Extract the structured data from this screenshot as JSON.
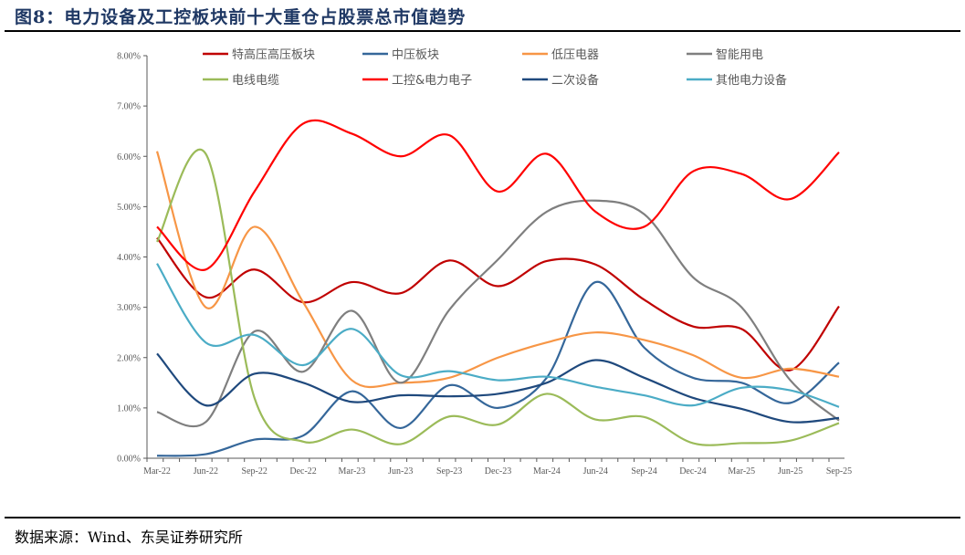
{
  "title": "图8：电力设备及工控板块前十大重仓占股票总市值趋势",
  "source": "数据来源：Wind、东吴证券研究所",
  "chart_data": {
    "type": "line",
    "title": "",
    "xlabel": "",
    "ylabel": "",
    "ylim": [
      0,
      8
    ],
    "y_ticks": [
      "0.00%",
      "1.00%",
      "2.00%",
      "3.00%",
      "4.00%",
      "5.00%",
      "6.00%",
      "7.00%",
      "8.00%"
    ],
    "categories": [
      "Mar-22",
      "Jun-22",
      "Sep-22",
      "Dec-22",
      "Mar-23",
      "Jun-23",
      "Sep-23",
      "Dec-23",
      "Mar-24",
      "Jun-24",
      "Sep-24",
      "Dec-24",
      "Mar-25",
      "Jun-25",
      "Sep-25"
    ],
    "grid": false,
    "legend_position": "top",
    "unit": "%",
    "smooth": true,
    "series": [
      {
        "name": "特高压高压板块",
        "color": "#C00000",
        "values": [
          4.38,
          3.2,
          3.75,
          3.1,
          3.5,
          3.28,
          3.93,
          3.42,
          3.92,
          3.85,
          3.15,
          2.62,
          2.57,
          1.75,
          3.02
        ]
      },
      {
        "name": "中压板块",
        "color": "#35679A",
        "values": [
          0.05,
          0.08,
          0.37,
          0.45,
          1.33,
          0.6,
          1.45,
          1.0,
          1.6,
          3.5,
          2.2,
          1.6,
          1.5,
          1.1,
          1.9
        ]
      },
      {
        "name": "低压电器",
        "color": "#F79646",
        "values": [
          6.1,
          3.0,
          4.6,
          3.1,
          1.55,
          1.5,
          1.6,
          2.0,
          2.3,
          2.5,
          2.35,
          2.05,
          1.6,
          1.78,
          1.62
        ]
      },
      {
        "name": "智能用电",
        "color": "#7F7F7F",
        "values": [
          0.92,
          0.72,
          2.52,
          1.72,
          2.93,
          1.5,
          2.95,
          3.95,
          4.9,
          5.12,
          4.85,
          3.6,
          3.0,
          1.55,
          0.75
        ]
      },
      {
        "name": "电线电缆",
        "color": "#9BBB59",
        "values": [
          4.3,
          6.05,
          1.2,
          0.33,
          0.57,
          0.28,
          0.83,
          0.67,
          1.28,
          0.77,
          0.82,
          0.3,
          0.3,
          0.35,
          0.7
        ]
      },
      {
        "name": "工控&电力电子",
        "color": "#FF0000",
        "values": [
          4.6,
          3.75,
          5.3,
          6.65,
          6.45,
          6.0,
          6.42,
          5.3,
          6.05,
          4.9,
          4.6,
          5.7,
          5.65,
          5.15,
          6.08
        ]
      },
      {
        "name": "二次设备",
        "color": "#1F497D",
        "values": [
          2.08,
          1.05,
          1.68,
          1.5,
          1.12,
          1.25,
          1.23,
          1.28,
          1.5,
          1.95,
          1.6,
          1.2,
          0.98,
          0.72,
          0.8
        ]
      },
      {
        "name": "其他电力设备",
        "color": "#4BACC6",
        "values": [
          3.87,
          2.3,
          2.45,
          1.85,
          2.57,
          1.65,
          1.73,
          1.55,
          1.62,
          1.42,
          1.25,
          1.05,
          1.4,
          1.35,
          1.02
        ]
      }
    ]
  }
}
